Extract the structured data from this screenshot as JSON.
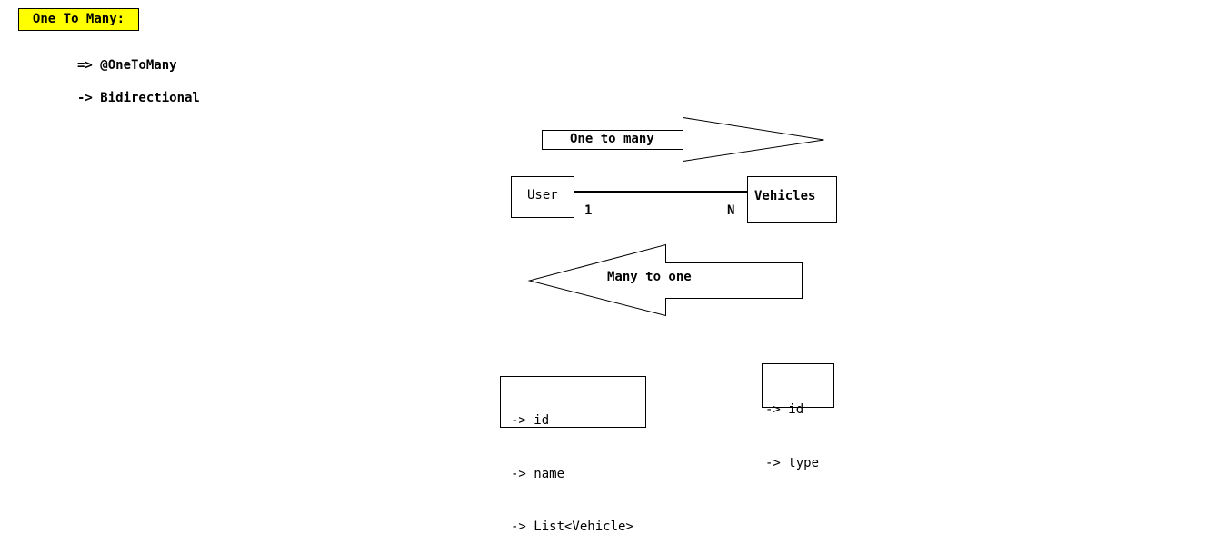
{
  "header": {
    "title": "One To Many:",
    "title_background": "#ffff00"
  },
  "notes": [
    "=> @OneToMany",
    "-> Bidirectional"
  ],
  "arrows": {
    "forward_label": "One to many",
    "backward_label": "Many to one"
  },
  "entities": {
    "user": "User",
    "vehicle": "Vehicles"
  },
  "cardinality": {
    "user_side": "1",
    "vehicle_side": "N"
  },
  "fields": {
    "user": [
      "-> id",
      "-> name",
      "-> List<Vehicle>"
    ],
    "vehicle": [
      "-> id",
      "-> type"
    ]
  }
}
